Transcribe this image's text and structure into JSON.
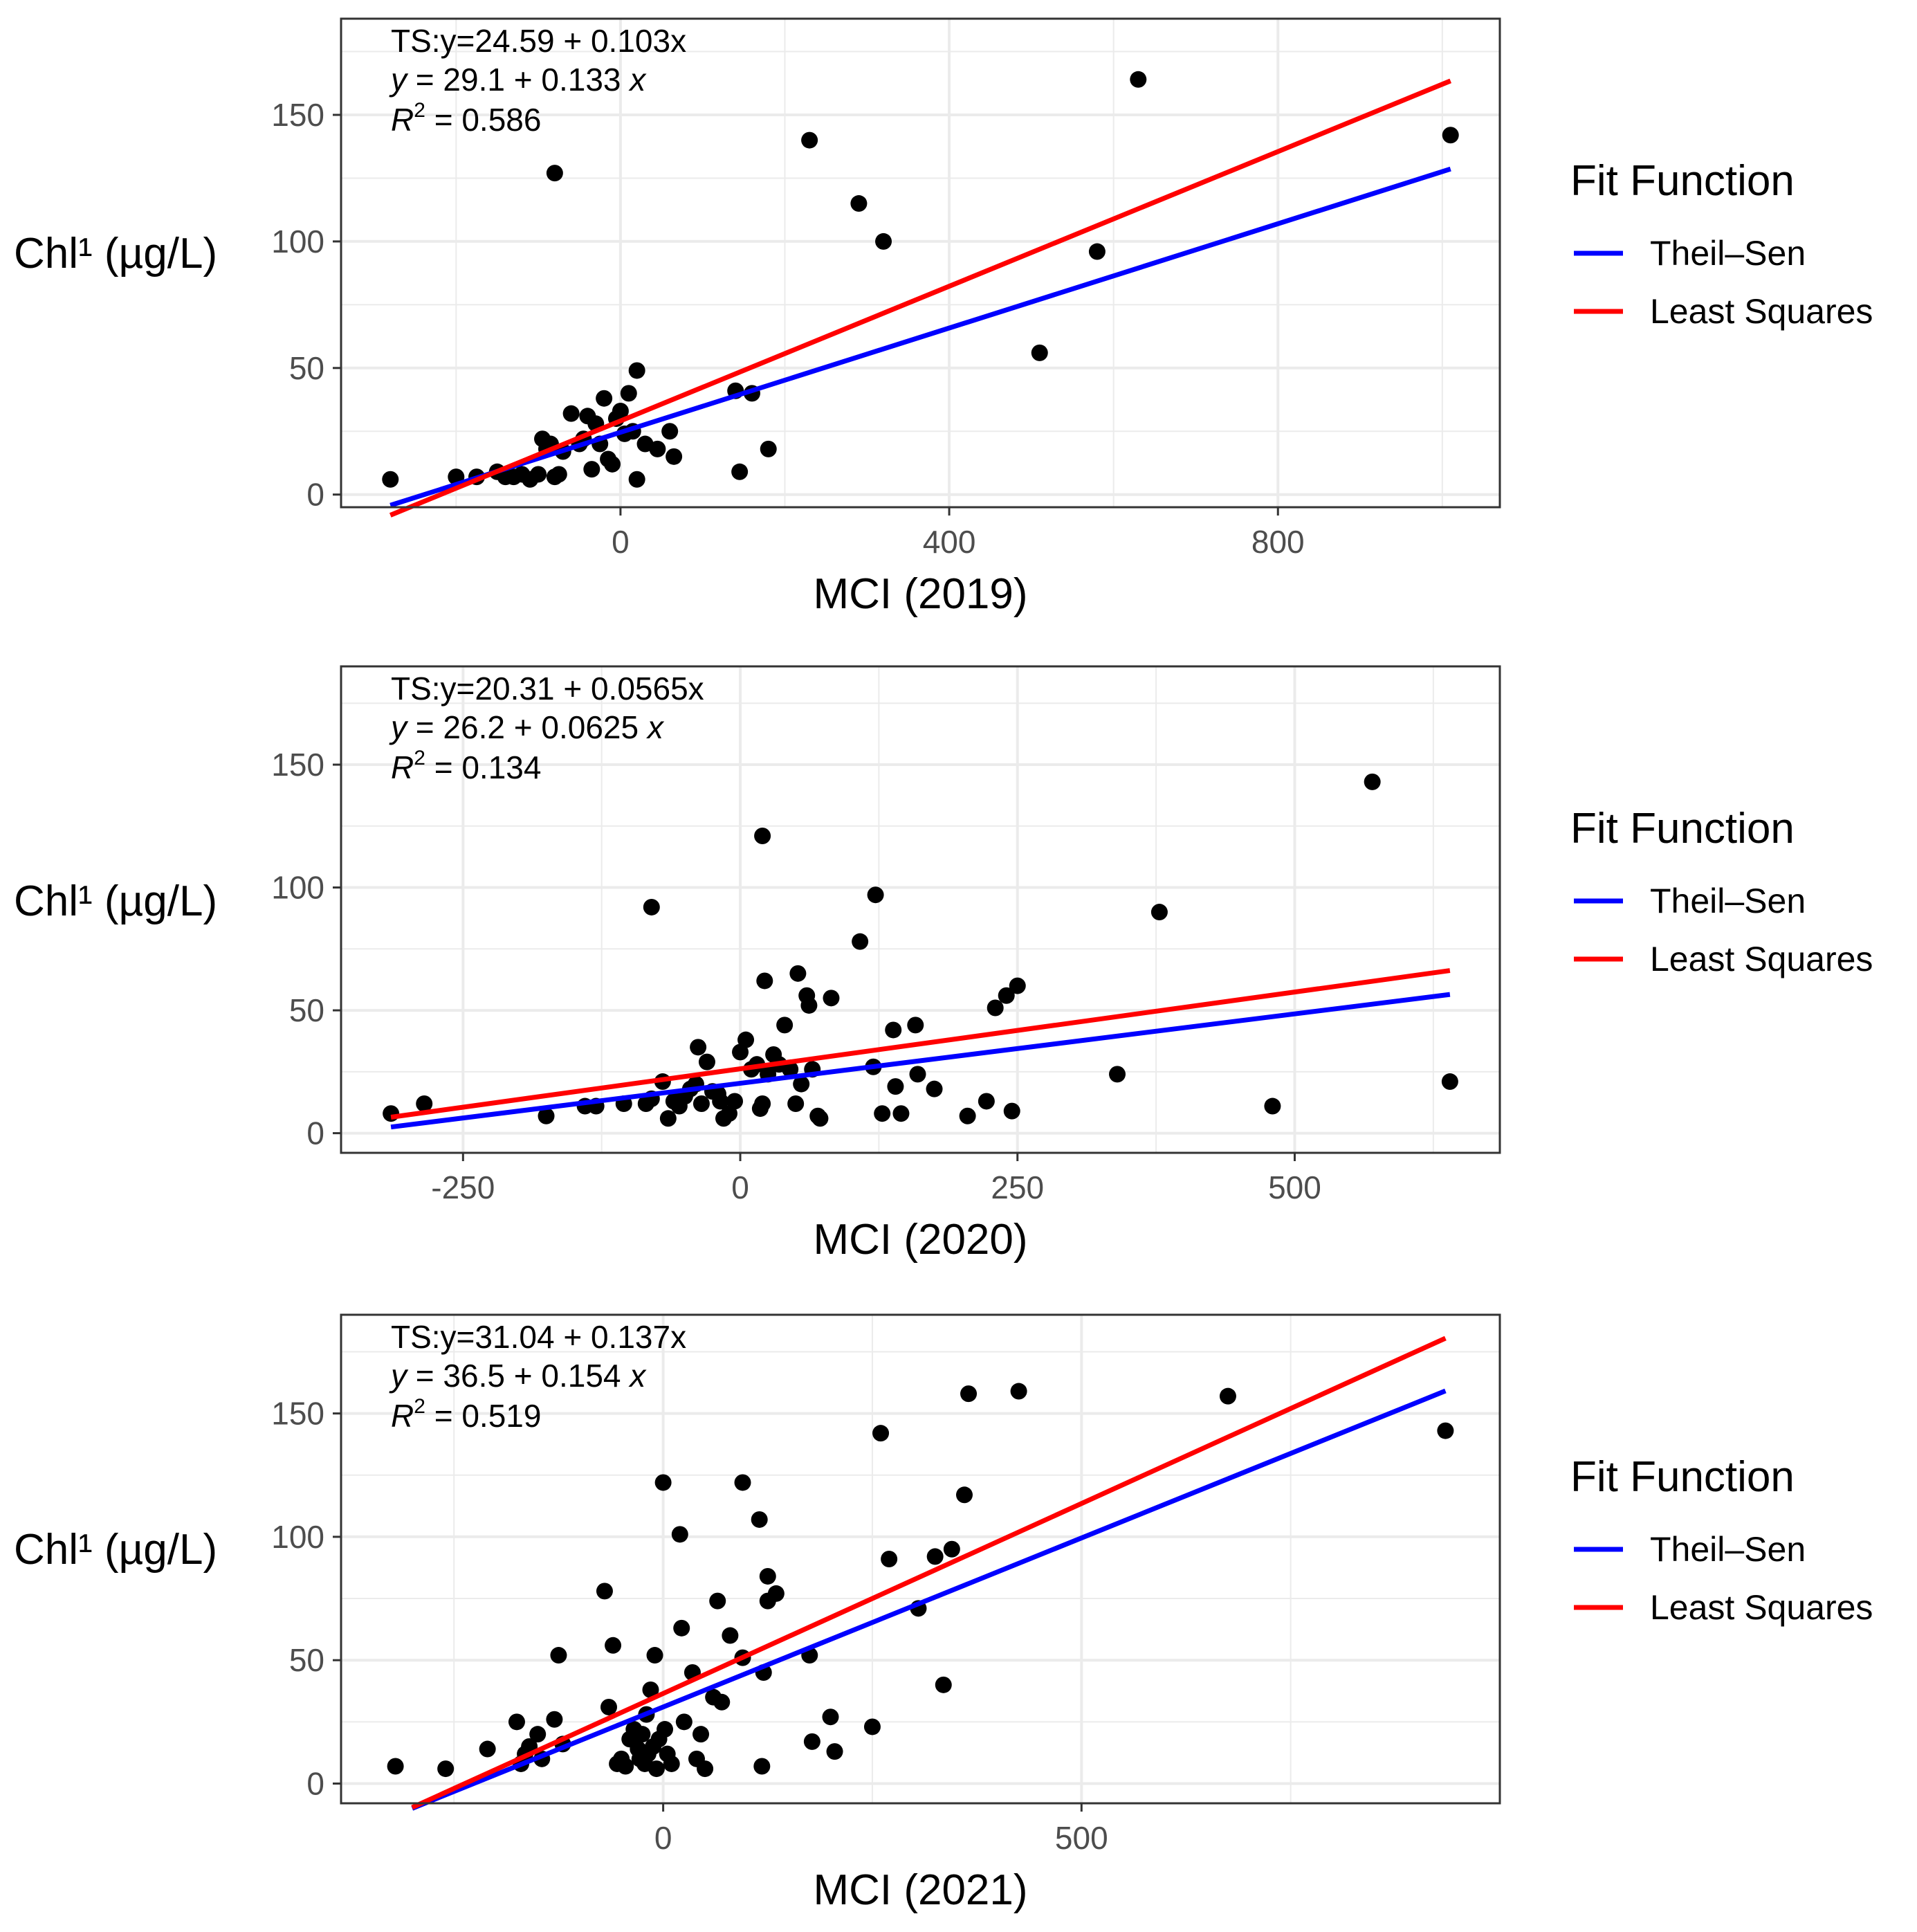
{
  "legend": {
    "title": "Fit Function",
    "entries": [
      {
        "label": "Theil–Sen",
        "color": "#0000ff"
      },
      {
        "label": "Least Squares",
        "color": "#ff0000"
      }
    ]
  },
  "colors": {
    "points": "#000000",
    "theil_sen": "#0000ff",
    "least_squares": "#ff0000",
    "grid": "#ebebeb",
    "panel_border": "#333333"
  },
  "chart_data": [
    {
      "type": "scatter",
      "title": "",
      "xlabel": "MCI (2019)",
      "ylabel": "Chl¹ (µg/L)",
      "xlim": [
        -340,
        1070
      ],
      "ylim": [
        -5,
        188
      ],
      "xticks": [
        0,
        400,
        800
      ],
      "xtick_labels": [
        "0",
        "400",
        "800"
      ],
      "yticks": [
        0,
        50,
        100,
        150
      ],
      "ytick_labels": [
        "0",
        "50",
        "100",
        "150"
      ],
      "annotation": {
        "ts": "TS:y=24.59 + 0.103x",
        "ls_y": "y",
        "ls_rest": " = 29.1 + 0.133 ",
        "ls_x": "x",
        "r2_r": "R",
        "r2_sup": "2",
        "r2_val": " = 0.586"
      },
      "fits": [
        {
          "name": "Theil–Sen",
          "intercept": 24.59,
          "slope": 0.103,
          "x_range": [
            -280,
            1010
          ]
        },
        {
          "name": "Least Squares",
          "intercept": 29.1,
          "slope": 0.133,
          "x_range": [
            -280,
            1010
          ]
        }
      ],
      "points": [
        [
          -280,
          6
        ],
        [
          -200,
          7
        ],
        [
          -175,
          7
        ],
        [
          -150,
          9
        ],
        [
          -140,
          7
        ],
        [
          -130,
          7
        ],
        [
          -120,
          8
        ],
        [
          -110,
          6
        ],
        [
          -100,
          8
        ],
        [
          -95,
          22
        ],
        [
          -90,
          18
        ],
        [
          -85,
          20
        ],
        [
          -80,
          7
        ],
        [
          -75,
          8
        ],
        [
          -70,
          17
        ],
        [
          -60,
          32
        ],
        [
          -50,
          20
        ],
        [
          -45,
          22
        ],
        [
          -40,
          31
        ],
        [
          -35,
          10
        ],
        [
          -30,
          28
        ],
        [
          -25,
          20
        ],
        [
          -20,
          38
        ],
        [
          -15,
          14
        ],
        [
          -10,
          12
        ],
        [
          -5,
          30
        ],
        [
          0,
          33
        ],
        [
          5,
          24
        ],
        [
          10,
          40
        ],
        [
          15,
          25
        ],
        [
          20,
          49
        ],
        [
          20,
          6
        ],
        [
          30,
          20
        ],
        [
          45,
          18
        ],
        [
          60,
          25
        ],
        [
          65,
          15
        ],
        [
          -80,
          127
        ],
        [
          140,
          41
        ],
        [
          145,
          9
        ],
        [
          160,
          40
        ],
        [
          180,
          18
        ],
        [
          230,
          140
        ],
        [
          290,
          115
        ],
        [
          320,
          100
        ],
        [
          510,
          56
        ],
        [
          580,
          96
        ],
        [
          630,
          164
        ],
        [
          1010,
          142
        ]
      ]
    },
    {
      "type": "scatter",
      "title": "",
      "xlabel": "MCI (2020)",
      "ylabel": "Chl¹ (µg/L)",
      "xlim": [
        -360,
        685
      ],
      "ylim": [
        -8,
        190
      ],
      "xticks": [
        -250,
        0,
        250,
        500
      ],
      "xtick_labels": [
        "-250",
        "0",
        "250",
        "500"
      ],
      "yticks": [
        0,
        50,
        100,
        150
      ],
      "ytick_labels": [
        "0",
        "50",
        "100",
        "150"
      ],
      "annotation": {
        "ts": "TS:y=20.31 + 0.0565x",
        "ls_y": "y",
        "ls_rest": " = 26.2 + 0.0625 ",
        "ls_x": "x",
        "r2_r": "R",
        "r2_sup": "2",
        "r2_val": " = 0.134"
      },
      "fits": [
        {
          "name": "Theil–Sen",
          "intercept": 20.31,
          "slope": 0.0565,
          "x_range": [
            -315,
            640
          ]
        },
        {
          "name": "Least Squares",
          "intercept": 26.2,
          "slope": 0.0625,
          "x_range": [
            -315,
            640
          ]
        }
      ],
      "points": [
        [
          -315,
          8
        ],
        [
          -285,
          12
        ],
        [
          -175,
          7
        ],
        [
          -140,
          11
        ],
        [
          -130,
          11
        ],
        [
          -105,
          12
        ],
        [
          -85,
          12
        ],
        [
          -80,
          14
        ],
        [
          -70,
          21
        ],
        [
          -65,
          6
        ],
        [
          -60,
          13
        ],
        [
          -55,
          11
        ],
        [
          -50,
          15
        ],
        [
          -45,
          18
        ],
        [
          -40,
          20
        ],
        [
          -38,
          35
        ],
        [
          -35,
          12
        ],
        [
          -30,
          29
        ],
        [
          -25,
          17
        ],
        [
          -20,
          16
        ],
        [
          -18,
          13
        ],
        [
          -15,
          6
        ],
        [
          -10,
          8
        ],
        [
          -5,
          13
        ],
        [
          0,
          33
        ],
        [
          5,
          38
        ],
        [
          10,
          26
        ],
        [
          15,
          28
        ],
        [
          18,
          10
        ],
        [
          20,
          12
        ],
        [
          22,
          62
        ],
        [
          25,
          24
        ],
        [
          30,
          32
        ],
        [
          35,
          28
        ],
        [
          40,
          44
        ],
        [
          45,
          26
        ],
        [
          50,
          12
        ],
        [
          52,
          65
        ],
        [
          55,
          20
        ],
        [
          60,
          56
        ],
        [
          62,
          52
        ],
        [
          65,
          26
        ],
        [
          70,
          7
        ],
        [
          72,
          6
        ],
        [
          82,
          55
        ],
        [
          -80,
          92
        ],
        [
          20,
          121
        ],
        [
          108,
          78
        ],
        [
          120,
          27
        ],
        [
          122,
          97
        ],
        [
          128,
          8
        ],
        [
          138,
          42
        ],
        [
          140,
          19
        ],
        [
          145,
          8
        ],
        [
          158,
          44
        ],
        [
          160,
          24
        ],
        [
          175,
          18
        ],
        [
          205,
          7
        ],
        [
          222,
          13
        ],
        [
          230,
          51
        ],
        [
          240,
          56
        ],
        [
          245,
          9
        ],
        [
          250,
          60
        ],
        [
          340,
          24
        ],
        [
          378,
          90
        ],
        [
          480,
          11
        ],
        [
          570,
          143
        ],
        [
          640,
          21
        ]
      ]
    },
    {
      "type": "scatter",
      "title": "",
      "xlabel": "MCI (2021)",
      "ylabel": "Chl¹ (µg/L)",
      "xlim": [
        -385,
        1000
      ],
      "ylim": [
        -8,
        190
      ],
      "xticks": [
        0,
        500
      ],
      "xtick_labels": [
        "0",
        "500"
      ],
      "yticks": [
        0,
        50,
        100,
        150
      ],
      "ytick_labels": [
        "0",
        "50",
        "100",
        "150"
      ],
      "annotation": {
        "ts": "TS:y=31.04 + 0.137x",
        "ls_y": "y",
        "ls_rest": " = 36.5 + 0.154 ",
        "ls_x": "x",
        "r2_r": "R",
        "r2_sup": "2",
        "r2_val": " = 0.519"
      },
      "fits": [
        {
          "name": "Theil–Sen",
          "intercept": 31.04,
          "slope": 0.137,
          "x_range": [
            -300,
            935
          ]
        },
        {
          "name": "Least Squares",
          "intercept": 36.5,
          "slope": 0.154,
          "x_range": [
            -300,
            935
          ]
        }
      ],
      "points": [
        [
          -320,
          7
        ],
        [
          -260,
          6
        ],
        [
          -210,
          14
        ],
        [
          -175,
          25
        ],
        [
          -170,
          8
        ],
        [
          -165,
          12
        ],
        [
          -160,
          15
        ],
        [
          -150,
          20
        ],
        [
          -145,
          10
        ],
        [
          -130,
          26
        ],
        [
          -125,
          52
        ],
        [
          -120,
          16
        ],
        [
          -70,
          78
        ],
        [
          -65,
          31
        ],
        [
          -60,
          56
        ],
        [
          -55,
          8
        ],
        [
          -50,
          10
        ],
        [
          -45,
          7
        ],
        [
          -40,
          18
        ],
        [
          -35,
          22
        ],
        [
          -30,
          14
        ],
        [
          -28,
          10
        ],
        [
          -25,
          20
        ],
        [
          -22,
          8
        ],
        [
          -20,
          28
        ],
        [
          -18,
          12
        ],
        [
          -15,
          38
        ],
        [
          -12,
          15
        ],
        [
          -10,
          52
        ],
        [
          -8,
          6
        ],
        [
          -5,
          18
        ],
        [
          0,
          122
        ],
        [
          2,
          22
        ],
        [
          5,
          12
        ],
        [
          10,
          8
        ],
        [
          20,
          101
        ],
        [
          22,
          63
        ],
        [
          25,
          25
        ],
        [
          35,
          45
        ],
        [
          40,
          10
        ],
        [
          45,
          20
        ],
        [
          50,
          6
        ],
        [
          65,
          74
        ],
        [
          60,
          35
        ],
        [
          70,
          33
        ],
        [
          80,
          60
        ],
        [
          95,
          51
        ],
        [
          95,
          122
        ],
        [
          115,
          107
        ],
        [
          118,
          7
        ],
        [
          120,
          45
        ],
        [
          125,
          74
        ],
        [
          125,
          84
        ],
        [
          135,
          77
        ],
        [
          175,
          52
        ],
        [
          178,
          17
        ],
        [
          200,
          27
        ],
        [
          205,
          13
        ],
        [
          250,
          23
        ],
        [
          260,
          142
        ],
        [
          270,
          91
        ],
        [
          305,
          71
        ],
        [
          325,
          92
        ],
        [
          335,
          40
        ],
        [
          345,
          95
        ],
        [
          360,
          117
        ],
        [
          365,
          158
        ],
        [
          425,
          159
        ],
        [
          675,
          157
        ],
        [
          935,
          143
        ]
      ]
    }
  ]
}
